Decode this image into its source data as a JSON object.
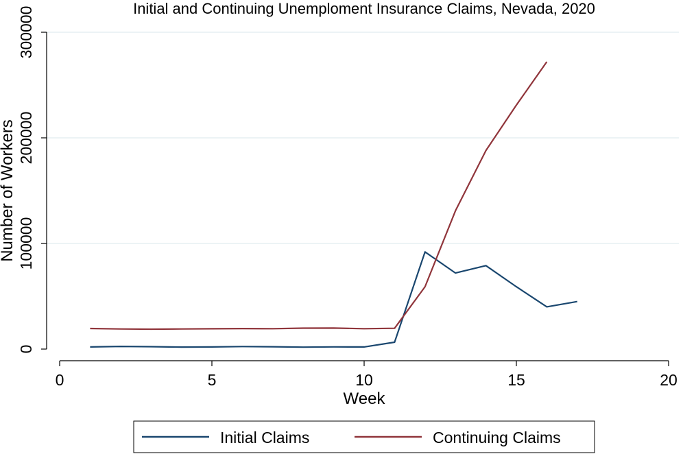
{
  "chart_data": {
    "type": "line",
    "title": "Initial and Continuing Unemploment Insurance Claims, Nevada, 2020",
    "xlabel": "Week",
    "ylabel": "Number of Workers",
    "xlim": [
      0,
      20
    ],
    "ylim": [
      0,
      300000
    ],
    "xticks": [
      0,
      5,
      10,
      15,
      20
    ],
    "yticks": [
      0,
      100000,
      200000,
      300000
    ],
    "xtick_labels": [
      "0",
      "5",
      "10",
      "15",
      "20"
    ],
    "ytick_labels": [
      "0",
      "100000",
      "200000",
      "300000"
    ],
    "grid": true,
    "legend_position": "bottom",
    "series": [
      {
        "name": "Initial Claims",
        "color": "#1a476f",
        "x": [
          1,
          2,
          3,
          4,
          5,
          6,
          7,
          8,
          9,
          10,
          11,
          12,
          13,
          14,
          15,
          16,
          17
        ],
        "y": [
          2000,
          2500,
          2300,
          1900,
          2000,
          2400,
          2200,
          1800,
          2100,
          2000,
          6500,
          92000,
          72000,
          79000,
          59000,
          40000,
          45000
        ]
      },
      {
        "name": "Continuing Claims",
        "color": "#90353b",
        "x": [
          1,
          2,
          3,
          4,
          5,
          6,
          7,
          8,
          9,
          10,
          11,
          12,
          13,
          14,
          15,
          16
        ],
        "y": [
          19500,
          19000,
          18800,
          19000,
          19200,
          19400,
          19300,
          19800,
          19900,
          19300,
          19700,
          59000,
          131000,
          188000,
          231000,
          272000
        ]
      }
    ]
  }
}
